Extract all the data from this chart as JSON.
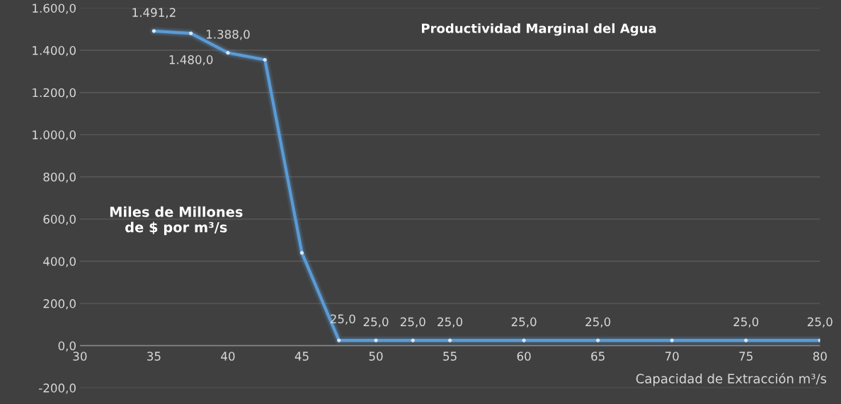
{
  "chart_data": {
    "type": "line",
    "title": "Productividad Marginal del Agua",
    "xlabel": "Capacidad de Extracción m³/s",
    "ylabel": "Miles de Millones\nde $ por m³/s",
    "x": [
      35,
      37.5,
      40,
      42.5,
      45,
      47.5,
      50,
      52.5,
      55,
      60,
      65,
      70,
      75,
      80
    ],
    "series": [
      {
        "color": "#5b9bd5",
        "values": [
          1491.2,
          1480.0,
          1388.0,
          1355,
          440,
          25.0,
          25.0,
          25.0,
          25.0,
          25.0,
          25.0,
          25,
          25.0,
          25.0
        ],
        "value_labels": [
          "1.491,2",
          "1.480,0",
          "1.388,0",
          null,
          null,
          "25,0",
          "25,0",
          "25,0",
          "25,0",
          "25,0",
          "25,0",
          null,
          "25,0",
          "25,0"
        ]
      }
    ],
    "xlim": [
      30,
      80
    ],
    "xticks": [
      30,
      35,
      40,
      45,
      50,
      55,
      60,
      65,
      70,
      75,
      80
    ],
    "ylim": [
      -200,
      1600
    ],
    "yticks": [
      {
        "value": -200,
        "label": "-200,0"
      },
      {
        "value": 0,
        "label": "0,0"
      },
      {
        "value": 200,
        "label": "200,0"
      },
      {
        "value": 400,
        "label": "400,0"
      },
      {
        "value": 600,
        "label": "600,0"
      },
      {
        "value": 800,
        "label": "800,0"
      },
      {
        "value": 1000,
        "label": "1.000,0"
      },
      {
        "value": 1200,
        "label": "1.200,0"
      },
      {
        "value": 1400,
        "label": "1.400,0"
      },
      {
        "value": 1600,
        "label": "1.600,0"
      }
    ],
    "grid": "y",
    "marker": "circle",
    "line_style": "solid"
  }
}
